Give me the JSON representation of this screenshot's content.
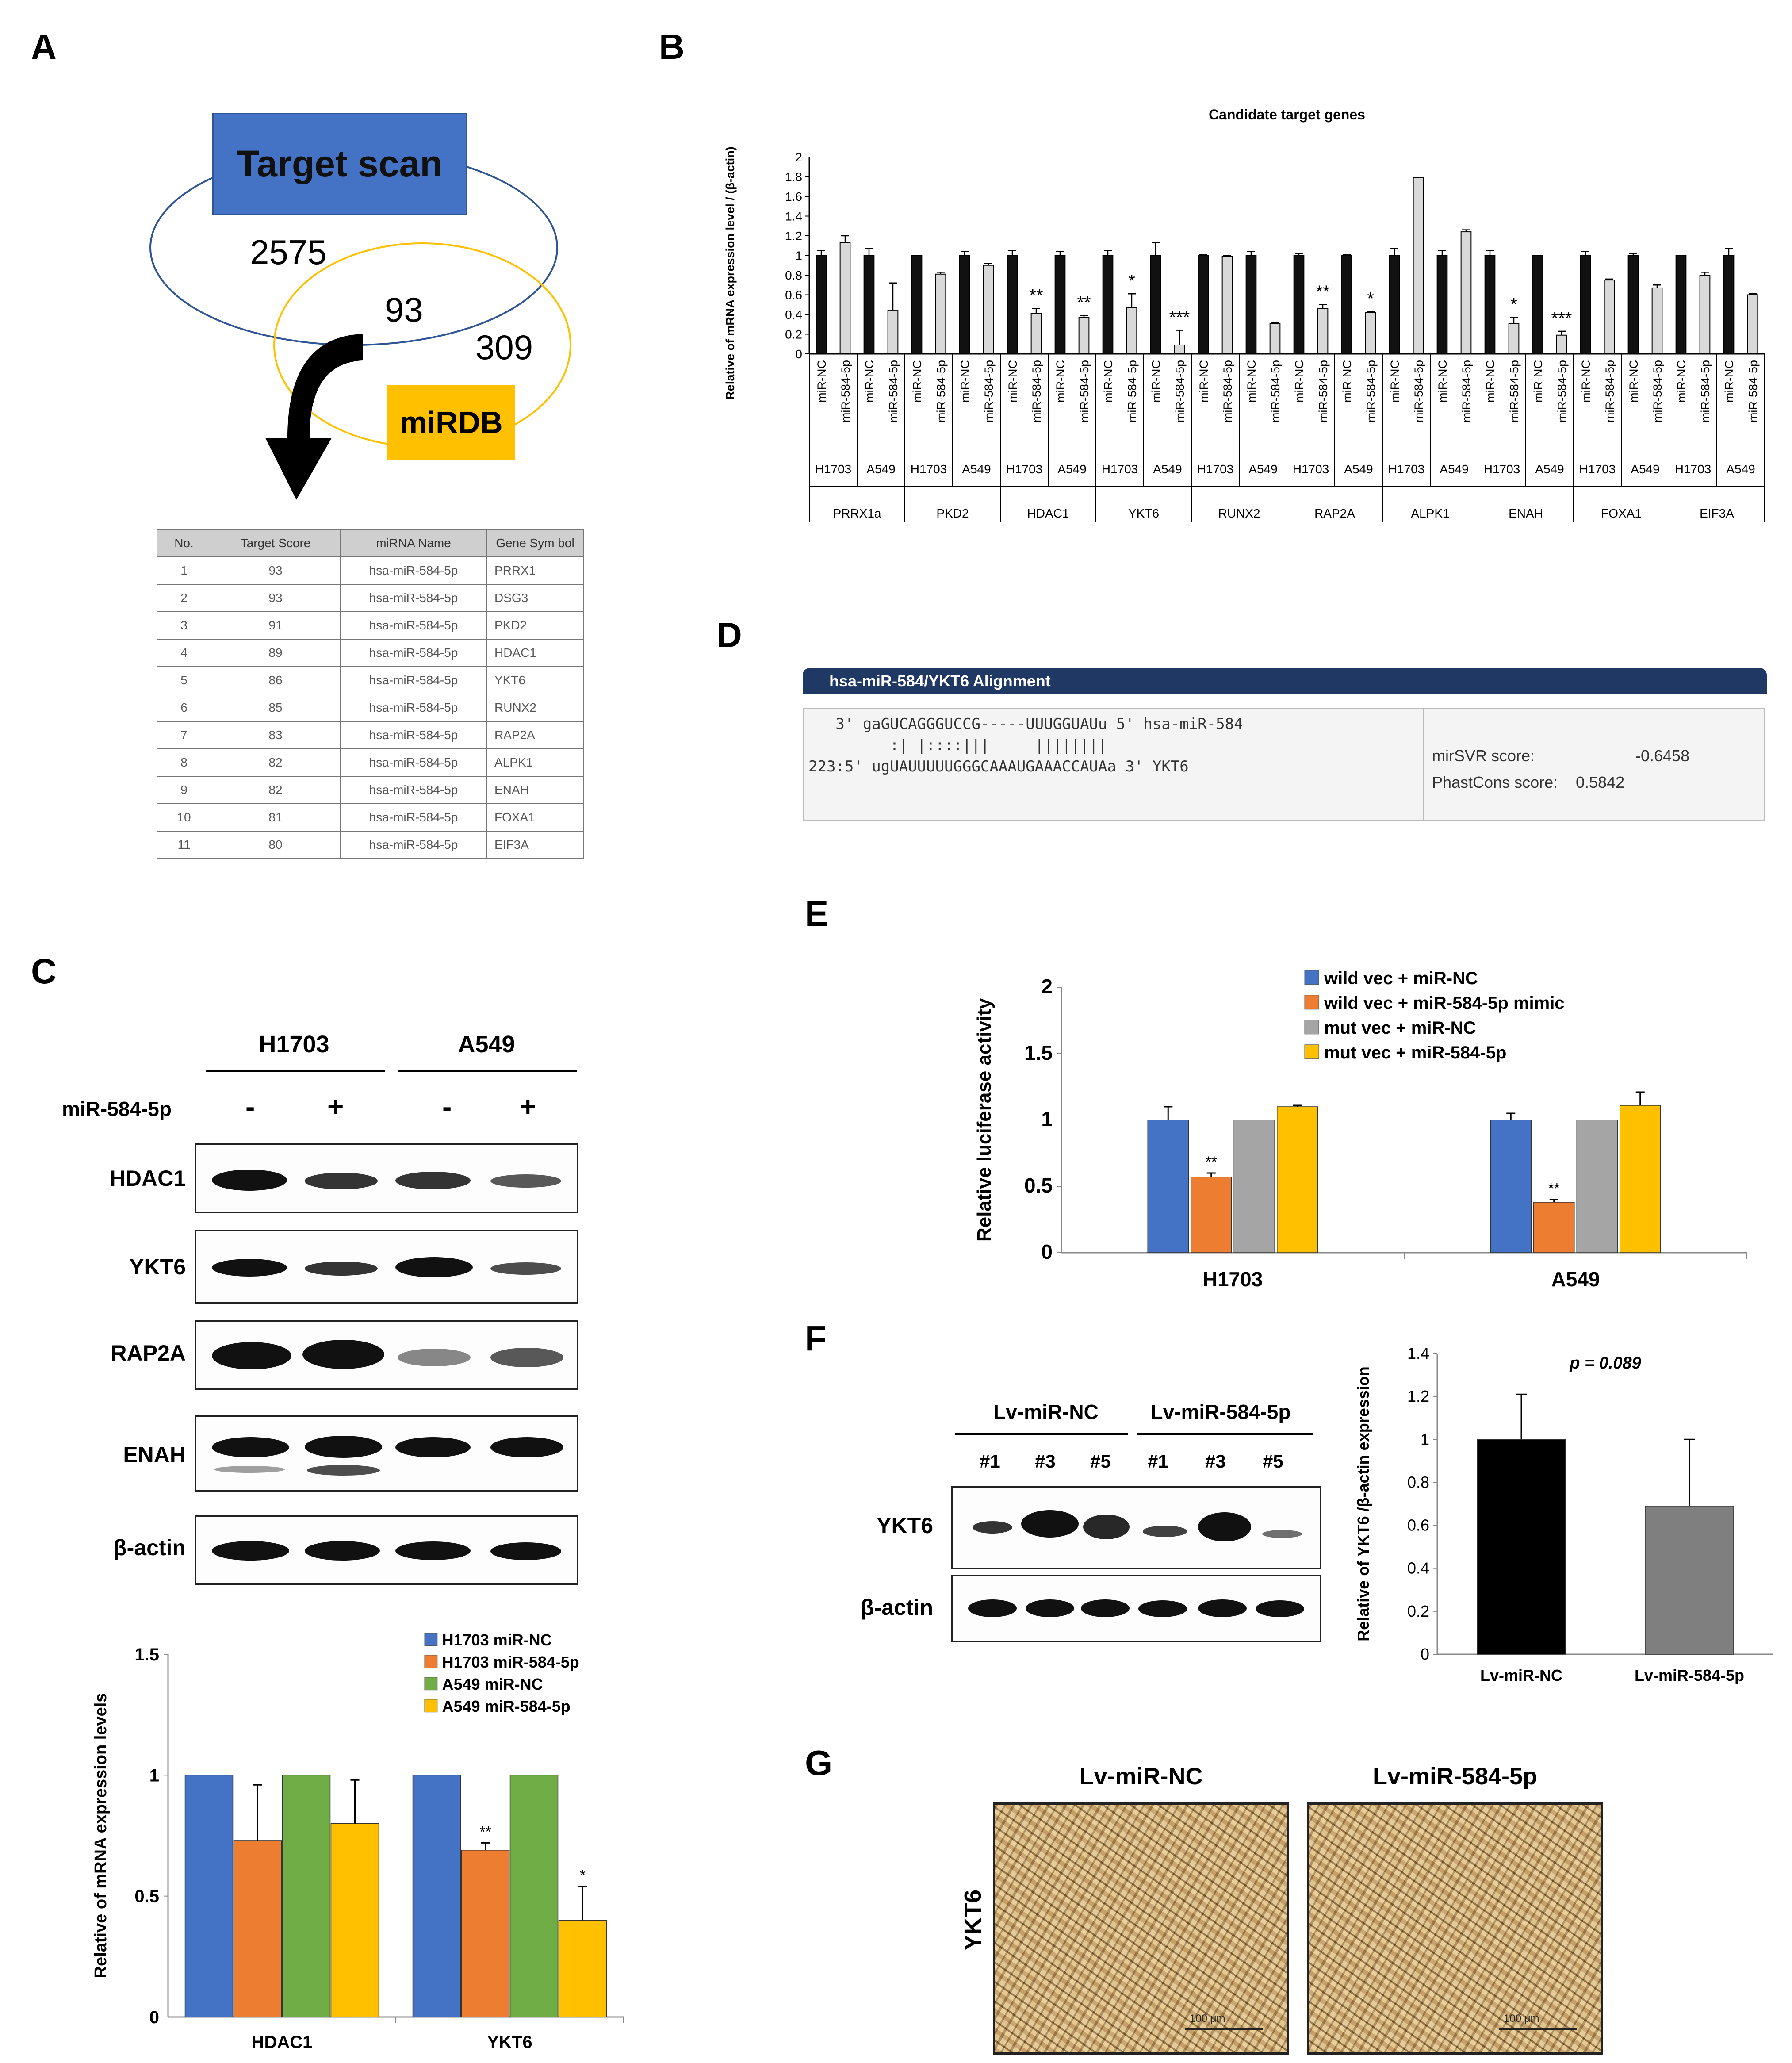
{
  "panel_labels": {
    "a": "A",
    "b": "B",
    "c": "C",
    "d": "D",
    "e": "E",
    "f": "F",
    "g": "G"
  },
  "colors": {
    "blue": "#4472C4",
    "orange": "#ED7D31",
    "green": "#70AD47",
    "gray": "#A5A5A5",
    "yellow": "#FFC000",
    "venn_box": "#4472C4",
    "venn_ring_a": "#2F5597",
    "venn_ring_b": "#FFC000"
  },
  "panel_a": {
    "targetscan_label": "Target scan",
    "mirdb_label": "miRDB",
    "count_targetscan": "2575",
    "count_overlap": "93",
    "count_mirdb": "309",
    "table": {
      "headers": [
        "No.",
        "Target Score",
        "miRNA Name",
        "Gene Sym bol"
      ],
      "rows": [
        [
          "1",
          "93",
          "hsa-miR-584-5p",
          "PRRX1"
        ],
        [
          "2",
          "93",
          "hsa-miR-584-5p",
          "DSG3"
        ],
        [
          "3",
          "91",
          "hsa-miR-584-5p",
          "PKD2"
        ],
        [
          "4",
          "89",
          "hsa-miR-584-5p",
          "HDAC1"
        ],
        [
          "5",
          "86",
          "hsa-miR-584-5p",
          "YKT6"
        ],
        [
          "6",
          "85",
          "hsa-miR-584-5p",
          "RUNX2"
        ],
        [
          "7",
          "83",
          "hsa-miR-584-5p",
          "RAP2A"
        ],
        [
          "8",
          "82",
          "hsa-miR-584-5p",
          "ALPK1"
        ],
        [
          "9",
          "82",
          "hsa-miR-584-5p",
          "ENAH"
        ],
        [
          "10",
          "81",
          "hsa-miR-584-5p",
          "FOXA1"
        ],
        [
          "11",
          "80",
          "hsa-miR-584-5p",
          "EIF3A"
        ]
      ]
    }
  },
  "panel_c_blot": {
    "cell_lines": [
      "H1703",
      "A549"
    ],
    "treatment_label": "miR-584-5p",
    "signs": [
      "-",
      "+",
      "-",
      "+"
    ],
    "rows": [
      "HDAC1",
      "YKT6",
      "RAP2A",
      "ENAH",
      "β-actin"
    ]
  },
  "panel_d": {
    "header": "hsa-miR-584/YKT6 Alignment",
    "line1": "   3' gaGUCAGGGUCCG-----UUUGGUAUu 5' hsa-miR-584",
    "line2": "         :| |::::|||     ||||||||",
    "line3": "223:5' ugUAUUUUUGGGCAAAUGAAACCAUAa 3' YKT6",
    "mirsvr_label": "mirSVR score:",
    "mirsvr_value": "-0.6458",
    "phastcons_label": "PhastCons score:",
    "phastcons_value": "0.5842"
  },
  "panel_f_blot": {
    "groups": [
      "Lv-miR-NC",
      "Lv-miR-584-5p"
    ],
    "lanes": [
      "#1",
      "#3",
      "#5",
      "#1",
      "#3",
      "#5"
    ],
    "rows": [
      "YKT6",
      "β-actin"
    ]
  },
  "panel_g": {
    "titles": [
      "Lv-miR-NC",
      "Lv-miR-584-5p"
    ],
    "row_label": "YKT6",
    "scale_bar": "100 μm"
  },
  "chart_data": [
    {
      "id": "B",
      "type": "bar",
      "title": "Candidate target genes",
      "ylabel": "Relative of mRNA expression  level / (β-actin)",
      "ylim": [
        0,
        2
      ],
      "yticks": [
        "0",
        "0.2",
        "0.4",
        "0.6",
        "0.8",
        "1",
        "1.2",
        "1.4",
        "1.6",
        "1.8",
        "2"
      ],
      "genes": [
        "PRRX1a",
        "PKD2",
        "HDAC1",
        "YKT6",
        "RUNX2",
        "RAP2A",
        "ALPK1",
        "ENAH",
        "FOXA1",
        "EIF3A"
      ],
      "cell_lines": [
        "H1703",
        "A549"
      ],
      "conditions": [
        "miR-NC",
        "miR-584-5p"
      ],
      "values": [
        1,
        1.13,
        1,
        0.44,
        1,
        0.81,
        1,
        0.9,
        1,
        0.41,
        1,
        0.37,
        1,
        0.47,
        1,
        0.09,
        1,
        0.99,
        1,
        0.31,
        1,
        0.46,
        1,
        0.42,
        1,
        1.79,
        1,
        1.24,
        1,
        0.31,
        1,
        0.19,
        1,
        0.75,
        1,
        0.67,
        1,
        0.8,
        1,
        0.6
      ],
      "errors": [
        0.05,
        0.07,
        0.07,
        0.28,
        0,
        0.02,
        0.04,
        0.02,
        0.05,
        0.05,
        0.04,
        0.02,
        0.05,
        0.14,
        0.13,
        0.15,
        0.01,
        0.01,
        0.04,
        0.01,
        0.02,
        0.04,
        0.01,
        0.01,
        0.07,
        0,
        0.05,
        0.02,
        0.05,
        0.06,
        0,
        0.04,
        0.04,
        0.01,
        0.02,
        0.03,
        0,
        0.03,
        0.07,
        0.01
      ],
      "significance": [
        "",
        "",
        "",
        "",
        "",
        "",
        "",
        "",
        "",
        "**",
        "",
        "**",
        "",
        "*",
        "",
        "***",
        "",
        "",
        "",
        "",
        "",
        "**",
        "",
        "*",
        "",
        "",
        "",
        "",
        "",
        "*",
        "",
        "***",
        "",
        "",
        "",
        "",
        "",
        "",
        "",
        ""
      ]
    },
    {
      "id": "C",
      "type": "bar",
      "ylabel": "Relative of mRNA expression levels",
      "ylim": [
        0,
        1.5
      ],
      "yticks": [
        "0",
        "0.5",
        "1",
        "1.5"
      ],
      "categories": [
        "HDAC1",
        "YKT6"
      ],
      "legend_location": "top-right",
      "series": [
        {
          "name": "H1703 miR-NC",
          "color": "#4472C4",
          "values": [
            1,
            1
          ],
          "errors": [
            0,
            0
          ],
          "sig": [
            "",
            ""
          ]
        },
        {
          "name": "H1703 miR-584-5p",
          "color": "#ED7D31",
          "values": [
            0.73,
            0.69
          ],
          "errors": [
            0.23,
            0.03
          ],
          "sig": [
            "",
            "**"
          ]
        },
        {
          "name": "A549 miR-NC",
          "color": "#70AD47",
          "values": [
            1,
            1
          ],
          "errors": [
            0,
            0
          ],
          "sig": [
            "",
            ""
          ]
        },
        {
          "name": "A549 miR-584-5p",
          "color": "#FFC000",
          "values": [
            0.8,
            0.4
          ],
          "errors": [
            0.18,
            0.14
          ],
          "sig": [
            "",
            "*"
          ]
        }
      ]
    },
    {
      "id": "E",
      "type": "bar",
      "ylabel": "Relative luciferase activity",
      "ylim": [
        0,
        2
      ],
      "yticks": [
        "0",
        "0.5",
        "1",
        "1.5",
        "2"
      ],
      "categories": [
        "H1703",
        "A549"
      ],
      "legend_location": "top-right",
      "series": [
        {
          "name": "wild vec + miR-NC",
          "color": "#4472C4",
          "values": [
            1,
            1
          ],
          "errors": [
            0.1,
            0.05
          ],
          "sig": [
            "",
            ""
          ]
        },
        {
          "name": "wild vec + miR-584-5p mimic",
          "color": "#ED7D31",
          "values": [
            0.57,
            0.38
          ],
          "errors": [
            0.03,
            0.02
          ],
          "sig": [
            "**",
            "**"
          ]
        },
        {
          "name": "mut vec + miR-NC",
          "color": "#A5A5A5",
          "values": [
            1,
            1
          ],
          "errors": [
            0,
            0
          ],
          "sig": [
            "",
            ""
          ]
        },
        {
          "name": "mut vec + miR-584-5p",
          "color": "#FFC000",
          "values": [
            1.1,
            1.11
          ],
          "errors": [
            0.01,
            0.1
          ],
          "sig": [
            "",
            ""
          ]
        }
      ]
    },
    {
      "id": "F",
      "type": "bar",
      "ylabel": "Relative of YKT6 /β-actin expression",
      "ylim": [
        0,
        1.4
      ],
      "yticks": [
        "0",
        "0.2",
        "0.4",
        "0.6",
        "0.8",
        "1",
        "1.2",
        "1.4"
      ],
      "categories": [
        "Lv-miR-NC",
        "Lv-miR-584-5p"
      ],
      "values": [
        1,
        0.69
      ],
      "errors": [
        0.21,
        0.31
      ],
      "colors": [
        "#000000",
        "#7F7F7F"
      ],
      "annotation": "p = 0.089"
    }
  ]
}
